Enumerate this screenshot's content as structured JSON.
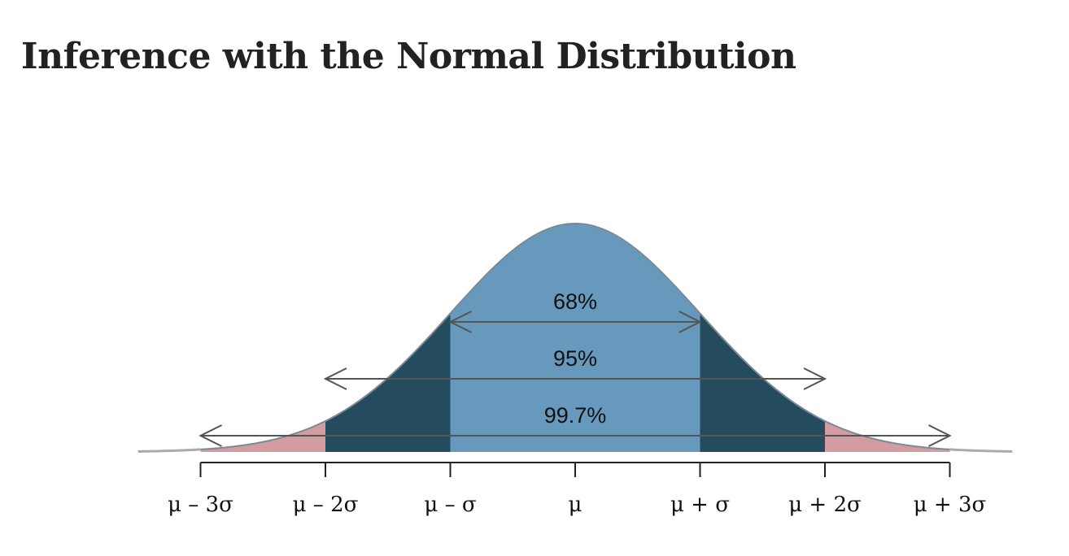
{
  "title": "Inference with the Normal Distribution",
  "chart_data": {
    "type": "area",
    "distribution": "normal",
    "x_range_sigma": [
      -3.5,
      3.5
    ],
    "bands": [
      {
        "name": "within 1 sigma",
        "from": -1,
        "to": 1,
        "color": "#6699bb"
      },
      {
        "name": "1 to 2 sigma",
        "from": 1,
        "to": 2,
        "color": "#244b5e"
      },
      {
        "name": "2 to 3 sigma",
        "from": 2,
        "to": 3,
        "color": "#d29ca0"
      }
    ],
    "intervals": [
      {
        "label": "68%",
        "from": -1,
        "to": 1
      },
      {
        "label": "95%",
        "from": -2,
        "to": 2
      },
      {
        "label": "99.7%",
        "from": -3,
        "to": 3
      }
    ],
    "ticks": [
      {
        "value": -3,
        "label": "μ – 3σ"
      },
      {
        "value": -2,
        "label": "μ – 2σ"
      },
      {
        "value": -1,
        "label": "μ – σ"
      },
      {
        "value": 0,
        "label": "μ"
      },
      {
        "value": 1,
        "label": "μ + σ"
      },
      {
        "value": 2,
        "label": "μ + 2σ"
      },
      {
        "value": 3,
        "label": "μ + 3σ"
      }
    ],
    "colors": {
      "outline": "#7a8a96",
      "tail": "#aaaaaa",
      "arrow": "#555555",
      "axis": "#222222"
    }
  }
}
